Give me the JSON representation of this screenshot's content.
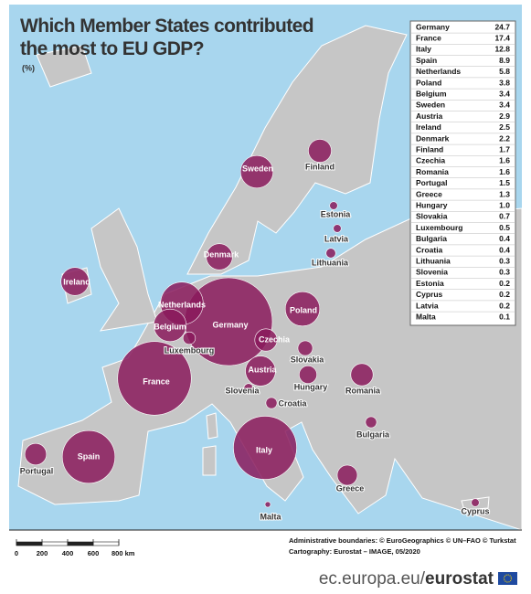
{
  "title": "Which Member States contributed the most to EU GDP?",
  "unit": "(%)",
  "countries": {
    "names": [
      "Germany",
      "France",
      "Italy",
      "Spain",
      "Netherlands",
      "Poland",
      "Belgium",
      "Sweden",
      "Austria",
      "Ireland",
      "Denmark",
      "Finland",
      "Czechia",
      "Romania",
      "Portugal",
      "Greece",
      "Hungary",
      "Slovakia",
      "Luxembourg",
      "Bulgaria",
      "Croatia",
      "Lithuania",
      "Slovenia",
      "Estonia",
      "Cyprus",
      "Latvia",
      "Malta"
    ],
    "values": [
      24.7,
      17.4,
      12.8,
      8.9,
      5.8,
      3.8,
      3.4,
      3.4,
      2.9,
      2.5,
      2.2,
      1.7,
      1.6,
      1.6,
      1.5,
      1.3,
      1.0,
      0.7,
      0.5,
      0.4,
      0.4,
      0.3,
      0.3,
      0.2,
      0.2,
      0.2,
      0.1
    ],
    "value_labels": [
      "24.7",
      "17.4",
      "12.8",
      "8.9",
      "5.8",
      "3.8",
      "3.4",
      "3.4",
      "2.9",
      "2.5",
      "2.2",
      "1.7",
      "1.6",
      "1.6",
      "1.5",
      "1.3",
      "1.0",
      "0.7",
      "0.5",
      "0.4",
      "0.4",
      "0.3",
      "0.3",
      "0.2",
      "0.2",
      "0.2",
      "0.1"
    ]
  },
  "scale_bar": {
    "ticks": [
      0,
      200,
      400,
      600,
      {
        "value": 800,
        "label": "800 km"
      }
    ]
  },
  "credits": [
    "Administrative boundaries: © EuroGeographics © UN–FAO © Turkstat",
    "Cartography: Eurostat – IMAGE, 05/2020"
  ],
  "footer": {
    "site": "ec.europa.eu/",
    "brand": "eurostat"
  }
}
